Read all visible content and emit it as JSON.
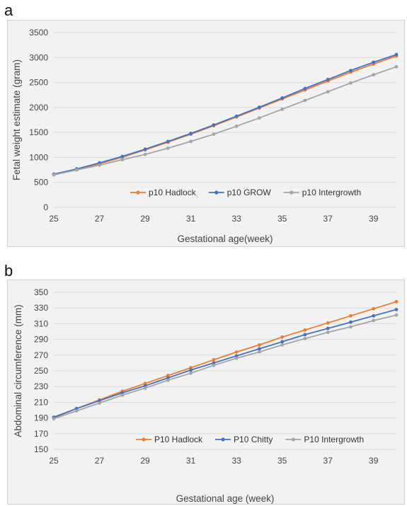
{
  "panels": {
    "a": "a",
    "b": "b"
  },
  "chart_data": [
    {
      "type": "line",
      "ylabel": "Fetal weight estimate (gram)",
      "xlabel": "Gestational age(week)",
      "xlim": [
        25,
        40
      ],
      "ylim": [
        0,
        3500
      ],
      "xticks": [
        25,
        27,
        29,
        31,
        33,
        35,
        37,
        39
      ],
      "yticks": [
        0,
        500,
        1000,
        1500,
        2000,
        2500,
        3000,
        3500
      ],
      "grid": "horizontal",
      "legend_position": "bottom-right",
      "x": [
        25,
        26,
        27,
        28,
        29,
        30,
        31,
        32,
        33,
        34,
        35,
        36,
        37,
        38,
        39,
        40
      ],
      "series": [
        {
          "name": "p10 Hadlock",
          "color": "#ed7d31",
          "values": [
            660,
            760,
            875,
            1005,
            1150,
            1305,
            1465,
            1635,
            1810,
            1990,
            2170,
            2350,
            2530,
            2705,
            2870,
            3030
          ]
        },
        {
          "name": "p10 GROW",
          "color": "#4472c4",
          "values": [
            665,
            770,
            890,
            1020,
            1165,
            1320,
            1480,
            1650,
            1825,
            2005,
            2190,
            2380,
            2560,
            2740,
            2905,
            3060
          ]
        },
        {
          "name": "p10 Intergrowth",
          "color": "#a5a5a5",
          "values": [
            650,
            750,
            845,
            955,
            1060,
            1185,
            1320,
            1465,
            1625,
            1790,
            1965,
            2140,
            2315,
            2490,
            2655,
            2815
          ]
        }
      ]
    },
    {
      "type": "line",
      "ylabel": "Abdominal circumference (mm)",
      "xlabel": "Gestational age (week)",
      "xlim": [
        25,
        40
      ],
      "ylim": [
        150,
        350
      ],
      "xticks": [
        25,
        27,
        29,
        31,
        33,
        35,
        37,
        39
      ],
      "yticks": [
        150,
        170,
        190,
        210,
        230,
        250,
        270,
        290,
        310,
        330,
        350
      ],
      "grid": "horizontal",
      "legend_position": "bottom-right",
      "x": [
        25,
        26,
        27,
        28,
        29,
        30,
        31,
        32,
        33,
        34,
        35,
        36,
        37,
        38,
        39,
        40
      ],
      "series": [
        {
          "name": "P10 Hadlock",
          "color": "#ed7d31",
          "values": [
            190,
            202,
            213,
            224,
            234,
            244,
            254,
            264,
            274,
            283,
            293,
            302,
            311,
            320,
            329,
            338
          ]
        },
        {
          "name": "P10 Chitty",
          "color": "#4472c4",
          "values": [
            191,
            202,
            212,
            222,
            231,
            241,
            251,
            260,
            269,
            278,
            287,
            296,
            304,
            312,
            320,
            328
          ]
        },
        {
          "name": "P10 Intergrowth",
          "color": "#a5a5a5",
          "values": [
            189,
            199,
            209,
            219,
            228,
            238,
            247,
            257,
            266,
            274,
            283,
            291,
            299,
            306,
            314,
            321
          ]
        }
      ]
    }
  ]
}
